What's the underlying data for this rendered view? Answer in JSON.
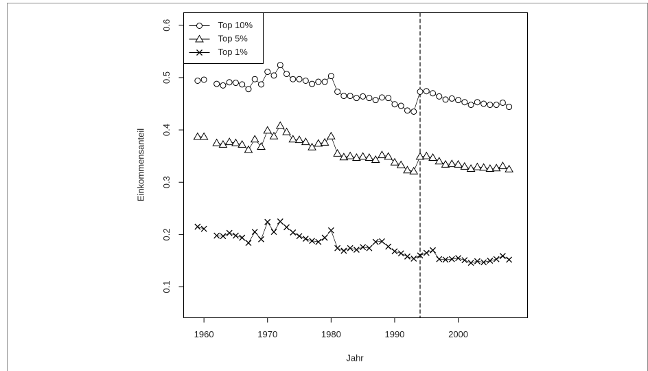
{
  "chart_data": {
    "type": "line",
    "x_label": "Jahr",
    "y_label": "Einkommensanteil",
    "x": [
      1959,
      1960,
      1961,
      1962,
      1963,
      1964,
      1965,
      1966,
      1967,
      1968,
      1969,
      1970,
      1971,
      1972,
      1973,
      1974,
      1975,
      1976,
      1977,
      1978,
      1979,
      1980,
      1981,
      1982,
      1983,
      1984,
      1985,
      1986,
      1987,
      1988,
      1989,
      1990,
      1991,
      1992,
      1993,
      1994,
      1995,
      1996,
      1997,
      1998,
      1999,
      2000,
      2001,
      2002,
      2003,
      2004,
      2005,
      2006,
      2007,
      2008
    ],
    "series": [
      {
        "name": "Top 10%",
        "color": "#000000",
        "marker": "circle",
        "values": [
          0.494,
          0.496,
          null,
          0.488,
          0.485,
          0.491,
          0.49,
          0.487,
          0.478,
          0.497,
          0.487,
          0.511,
          0.504,
          0.524,
          0.507,
          0.497,
          0.497,
          0.494,
          0.488,
          0.492,
          0.492,
          0.503,
          0.473,
          0.465,
          0.465,
          0.461,
          0.464,
          0.461,
          0.457,
          0.462,
          0.461,
          0.449,
          0.446,
          0.437,
          0.435,
          0.473,
          0.474,
          0.47,
          0.464,
          0.458,
          0.46,
          0.457,
          0.453,
          0.448,
          0.453,
          0.45,
          0.448,
          0.448,
          0.452,
          0.444
        ]
      },
      {
        "name": "Top 5%",
        "color": "#000000",
        "marker": "triangle",
        "values": [
          0.387,
          0.387,
          null,
          0.375,
          0.372,
          0.377,
          0.375,
          0.372,
          0.362,
          0.382,
          0.368,
          0.399,
          0.388,
          0.408,
          0.396,
          0.382,
          0.381,
          0.377,
          0.367,
          0.374,
          0.376,
          0.388,
          0.355,
          0.348,
          0.35,
          0.347,
          0.349,
          0.347,
          0.343,
          0.352,
          0.349,
          0.338,
          0.333,
          0.323,
          0.321,
          0.349,
          0.35,
          0.347,
          0.34,
          0.334,
          0.335,
          0.334,
          0.33,
          0.326,
          0.329,
          0.328,
          0.326,
          0.327,
          0.331,
          0.325
        ]
      },
      {
        "name": "Top 1%",
        "color": "#000000",
        "marker": "cross",
        "values": [
          0.215,
          0.211,
          null,
          0.198,
          0.197,
          0.203,
          0.198,
          0.194,
          0.184,
          0.205,
          0.191,
          0.224,
          0.205,
          0.225,
          0.214,
          0.204,
          0.197,
          0.192,
          0.188,
          0.186,
          0.194,
          0.208,
          0.174,
          0.169,
          0.174,
          0.171,
          0.176,
          0.174,
          0.186,
          0.187,
          0.177,
          0.168,
          0.164,
          0.158,
          0.154,
          0.16,
          0.165,
          0.17,
          0.153,
          0.152,
          0.153,
          0.155,
          0.151,
          0.146,
          0.149,
          0.147,
          0.15,
          0.153,
          0.159,
          0.152
        ]
      }
    ],
    "xlim": [
      1956.8,
      2010.9
    ],
    "xticks": [
      1960,
      1970,
      1980,
      1990,
      2000
    ],
    "ylim": [
      0.041,
      0.624
    ],
    "yticks": [
      0.1,
      0.2,
      0.3,
      0.4,
      0.5,
      0.6
    ],
    "vline": 1994,
    "legend": "top-left",
    "grid": false
  }
}
